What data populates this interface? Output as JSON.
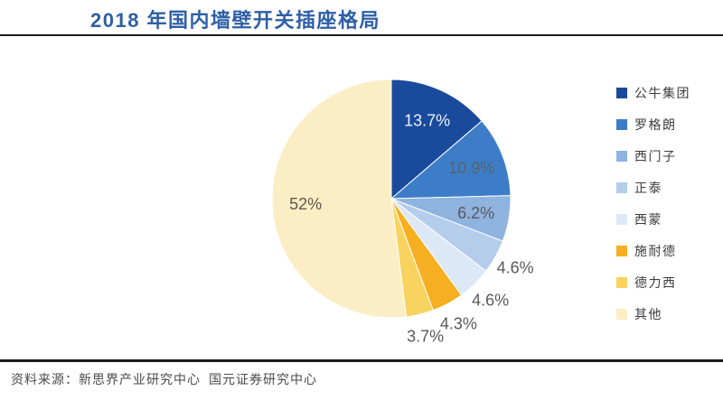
{
  "header": {
    "title": "2018 年国内墙壁开关插座格局"
  },
  "footer": {
    "source": "资料来源：新思界产业研究中心  国元证券研究中心"
  },
  "colors": {
    "title": "#2E5FA6",
    "divider": "#1B1B1B",
    "label_dark": "#595959",
    "label_light": "#EAF2FA",
    "legend_text": "#3D3D3D"
  },
  "chart_data": {
    "type": "pie",
    "title": "2018 年国内墙壁开关插座格局",
    "start_angle_deg": 0,
    "direction": "clockwise",
    "legend_position": "right",
    "total": 100,
    "series": [
      {
        "name": "公牛集团",
        "value": 13.7,
        "label": "13.7%",
        "color": "#1A4A9C",
        "label_color": "#EAF2FA",
        "label_inside": true
      },
      {
        "name": "罗格朗",
        "value": 10.9,
        "label": "10.9%",
        "color": "#3D7DC8",
        "label_color": "#56636F",
        "label_inside": true
      },
      {
        "name": "西门子",
        "value": 6.2,
        "label": "6.2%",
        "color": "#8FB3DF",
        "label_color": "#595959",
        "label_inside": true
      },
      {
        "name": "正泰",
        "value": 4.6,
        "label": "4.6%",
        "color": "#B4CDEB",
        "label_color": "#595959",
        "label_inside": false
      },
      {
        "name": "西蒙",
        "value": 4.6,
        "label": "4.6%",
        "color": "#DCE8F5",
        "label_color": "#595959",
        "label_inside": false
      },
      {
        "name": "施耐德",
        "value": 4.3,
        "label": "4.3%",
        "color": "#F5AF20",
        "label_color": "#595959",
        "label_inside": false
      },
      {
        "name": "德力西",
        "value": 3.7,
        "label": "3.7%",
        "color": "#F9D35F",
        "label_color": "#595959",
        "label_inside": false
      },
      {
        "name": "其他",
        "value": 52,
        "label": "52%",
        "color": "#FBEDC4",
        "label_color": "#5E5A4C",
        "label_inside": true
      }
    ]
  }
}
